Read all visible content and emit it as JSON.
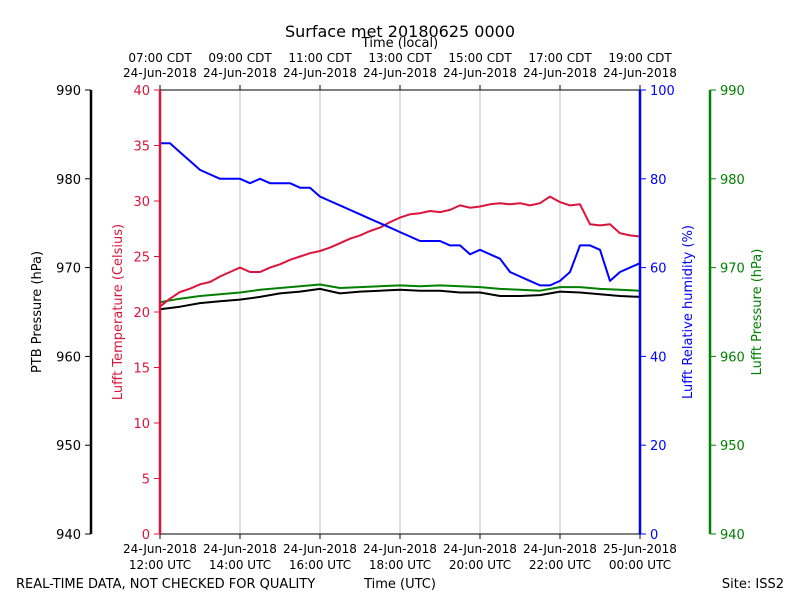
{
  "chart_data": {
    "type": "line",
    "title": "Surface met 20180625 0000",
    "top_axis_title": "Time (local)",
    "top_ticks": [
      {
        "time": "07:00 CDT",
        "date": "24-Jun-2018"
      },
      {
        "time": "09:00 CDT",
        "date": "24-Jun-2018"
      },
      {
        "time": "11:00 CDT",
        "date": "24-Jun-2018"
      },
      {
        "time": "13:00 CDT",
        "date": "24-Jun-2018"
      },
      {
        "time": "15:00 CDT",
        "date": "24-Jun-2018"
      },
      {
        "time": "17:00 CDT",
        "date": "24-Jun-2018"
      },
      {
        "time": "19:00 CDT",
        "date": "24-Jun-2018"
      }
    ],
    "bottom_ticks": [
      {
        "date": "24-Jun-2018",
        "time": "12:00 UTC"
      },
      {
        "date": "24-Jun-2018",
        "time": "14:00 UTC"
      },
      {
        "date": "24-Jun-2018",
        "time": "16:00 UTC"
      },
      {
        "date": "24-Jun-2018",
        "time": "18:00 UTC"
      },
      {
        "date": "24-Jun-2018",
        "time": "20:00 UTC"
      },
      {
        "date": "24-Jun-2018",
        "time": "22:00 UTC"
      },
      {
        "date": "25-Jun-2018",
        "time": "00:00 UTC"
      }
    ],
    "xlabel": "Time (UTC)",
    "xlim_hours_utc": [
      12,
      24
    ],
    "footer_left": "REAL-TIME DATA, NOT CHECKED FOR QUALITY",
    "footer_right": "Site: ISS2",
    "axes": {
      "ptb": {
        "label": "PTB Pressure (hPa)",
        "ylim": [
          940,
          990
        ],
        "ticks": [
          940,
          950,
          960,
          970,
          980,
          990
        ],
        "color": "#000000"
      },
      "temp": {
        "label": "Lufft Temperature (Celsius)",
        "ylim": [
          0,
          40
        ],
        "ticks": [
          0,
          5,
          10,
          15,
          20,
          25,
          30,
          35,
          40
        ],
        "color": "#dc143c"
      },
      "rh": {
        "label": "Lufft Relative humidity (%)",
        "ylim": [
          0,
          100
        ],
        "ticks": [
          0,
          20,
          40,
          60,
          80,
          100
        ],
        "color": "#0000ff"
      },
      "lufft_p": {
        "label": "Lufft Pressure (hPa)",
        "ylim": [
          940,
          990
        ],
        "ticks": [
          940,
          950,
          960,
          970,
          980,
          990
        ],
        "color": "#008000"
      }
    },
    "series": [
      {
        "name": "Lufft Temperature",
        "axis": "temp",
        "color": "#dc143c",
        "x": [
          12.0,
          12.25,
          12.5,
          12.75,
          13.0,
          13.25,
          13.5,
          13.75,
          14.0,
          14.25,
          14.5,
          14.75,
          15.0,
          15.25,
          15.5,
          15.75,
          16.0,
          16.25,
          16.5,
          16.75,
          17.0,
          17.25,
          17.5,
          17.75,
          18.0,
          18.25,
          18.5,
          18.75,
          19.0,
          19.25,
          19.5,
          19.75,
          20.0,
          20.25,
          20.5,
          20.75,
          21.0,
          21.25,
          21.5,
          21.75,
          22.0,
          22.25,
          22.5,
          22.75,
          23.0,
          23.25,
          23.5,
          23.75,
          24.0
        ],
        "values": [
          20.5,
          21.2,
          21.8,
          22.1,
          22.5,
          22.7,
          23.2,
          23.6,
          24.0,
          23.6,
          23.6,
          24.0,
          24.3,
          24.7,
          25.0,
          25.3,
          25.5,
          25.8,
          26.2,
          26.6,
          26.9,
          27.3,
          27.6,
          28.1,
          28.5,
          28.8,
          28.9,
          29.1,
          29.0,
          29.2,
          29.6,
          29.4,
          29.5,
          29.7,
          29.8,
          29.7,
          29.8,
          29.6,
          29.8,
          30.4,
          29.9,
          29.6,
          29.7,
          27.9,
          27.8,
          27.9,
          27.1,
          26.9,
          26.8
        ]
      },
      {
        "name": "Lufft Relative humidity",
        "axis": "rh",
        "color": "#0000ff",
        "x": [
          12.0,
          12.25,
          12.5,
          12.75,
          13.0,
          13.25,
          13.5,
          13.75,
          14.0,
          14.25,
          14.5,
          14.75,
          15.0,
          15.25,
          15.5,
          15.75,
          16.0,
          16.25,
          16.5,
          16.75,
          17.0,
          17.25,
          17.5,
          17.75,
          18.0,
          18.25,
          18.5,
          18.75,
          19.0,
          19.25,
          19.5,
          19.75,
          20.0,
          20.25,
          20.5,
          20.75,
          21.0,
          21.25,
          21.5,
          21.75,
          22.0,
          22.25,
          22.5,
          22.75,
          23.0,
          23.25,
          23.5,
          23.75,
          24.0
        ],
        "values": [
          88,
          88,
          86,
          84,
          82,
          81,
          80,
          80,
          80,
          79,
          80,
          79,
          79,
          79,
          78,
          78,
          76,
          75,
          74,
          73,
          72,
          71,
          70,
          69,
          68,
          67,
          66,
          66,
          66,
          65,
          65,
          63,
          64,
          63,
          62,
          59,
          58,
          57,
          56,
          56,
          57,
          59,
          65,
          65,
          64,
          57,
          59,
          60,
          61
        ]
      },
      {
        "name": "Lufft Pressure",
        "axis": "lufft_p",
        "color": "#008000",
        "x": [
          12.0,
          12.5,
          13.0,
          13.5,
          14.0,
          14.5,
          15.0,
          15.5,
          16.0,
          16.5,
          17.0,
          17.5,
          18.0,
          18.5,
          19.0,
          19.5,
          20.0,
          20.5,
          21.0,
          21.5,
          22.0,
          22.5,
          23.0,
          23.5,
          24.0
        ],
        "values": [
          966.1,
          966.5,
          966.8,
          967.0,
          967.2,
          967.5,
          967.7,
          967.9,
          968.1,
          967.7,
          967.8,
          967.9,
          968.0,
          967.9,
          968.0,
          967.9,
          967.8,
          967.6,
          967.5,
          967.4,
          967.8,
          967.8,
          967.6,
          967.5,
          967.4
        ]
      },
      {
        "name": "PTB Pressure",
        "axis": "ptb",
        "color": "#000000",
        "x": [
          12.0,
          12.5,
          13.0,
          13.5,
          14.0,
          14.5,
          15.0,
          15.5,
          16.0,
          16.5,
          17.0,
          17.5,
          18.0,
          18.5,
          19.0,
          19.5,
          20.0,
          20.5,
          21.0,
          21.5,
          22.0,
          22.5,
          23.0,
          23.5,
          24.0
        ],
        "values": [
          965.3,
          965.6,
          966.0,
          966.2,
          966.4,
          966.7,
          967.1,
          967.3,
          967.6,
          967.1,
          967.3,
          967.4,
          967.5,
          967.4,
          967.4,
          967.2,
          967.2,
          966.8,
          966.8,
          966.9,
          967.3,
          967.2,
          967.0,
          966.8,
          966.7
        ]
      }
    ]
  }
}
